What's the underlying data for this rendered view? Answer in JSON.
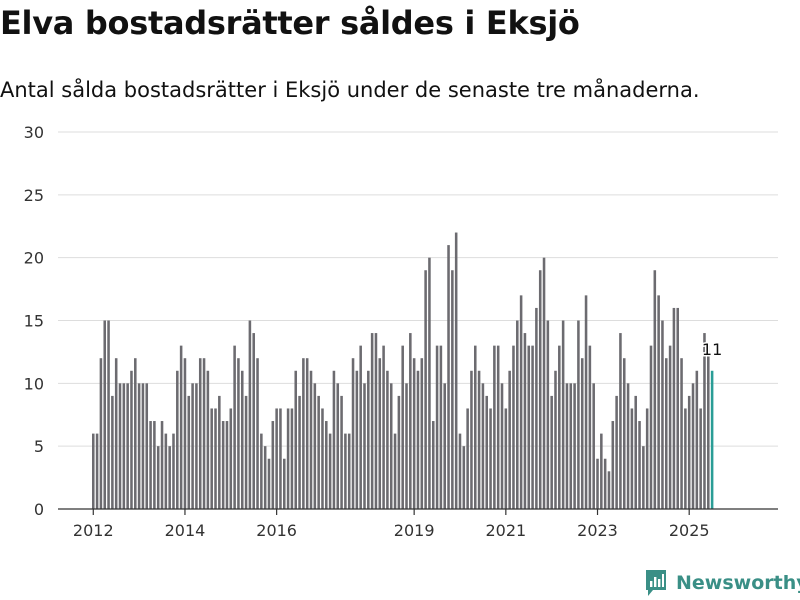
{
  "title": "Elva bostadsrätter såldes i Eksjö",
  "subtitle": "Antal sålda bostadsrätter i Eksjö under de senaste tre månaderna.",
  "brand": {
    "name": "Newsworthy",
    "logo_icon": "newsworthy-logo-icon"
  },
  "colors": {
    "bar": "#6c6b70",
    "highlight": "#2a9d96",
    "grid": "#dddddd",
    "brand": "#3a8f86"
  },
  "chart_data": {
    "type": "bar",
    "x_start": "2012-01",
    "interval": "month",
    "ylim": [
      0,
      30
    ],
    "yticks": [
      0,
      5,
      10,
      15,
      20,
      25,
      30
    ],
    "xticks": [
      "2012",
      "2014",
      "2016",
      "2019",
      "2021",
      "2023",
      "2025"
    ],
    "xlabel": "",
    "ylabel": "",
    "grid": true,
    "highlight_label": "11",
    "values": [
      6,
      6,
      12,
      15,
      15,
      9,
      12,
      10,
      10,
      10,
      11,
      12,
      10,
      10,
      10,
      7,
      7,
      5,
      7,
      6,
      5,
      6,
      11,
      13,
      12,
      9,
      10,
      10,
      12,
      12,
      11,
      8,
      8,
      9,
      7,
      7,
      8,
      13,
      12,
      11,
      9,
      15,
      14,
      12,
      6,
      5,
      4,
      7,
      8,
      8,
      4,
      8,
      8,
      11,
      9,
      12,
      12,
      11,
      10,
      9,
      8,
      7,
      6,
      11,
      10,
      9,
      6,
      6,
      12,
      11,
      13,
      10,
      11,
      14,
      14,
      12,
      13,
      11,
      10,
      6,
      9,
      13,
      10,
      14,
      12,
      11,
      12,
      19,
      20,
      7,
      13,
      13,
      10,
      21,
      19,
      22,
      6,
      5,
      8,
      11,
      13,
      11,
      10,
      9,
      8,
      13,
      13,
      10,
      8,
      11,
      13,
      15,
      17,
      14,
      13,
      13,
      16,
      19,
      20,
      15,
      9,
      11,
      13,
      15,
      10,
      10,
      10,
      15,
      12,
      17,
      13,
      10,
      4,
      6,
      4,
      3,
      7,
      9,
      14,
      12,
      10,
      8,
      9,
      7,
      5,
      8,
      13,
      19,
      17,
      15,
      12,
      13,
      16,
      16,
      12,
      8,
      9,
      10,
      11,
      8,
      14,
      13,
      11
    ]
  }
}
